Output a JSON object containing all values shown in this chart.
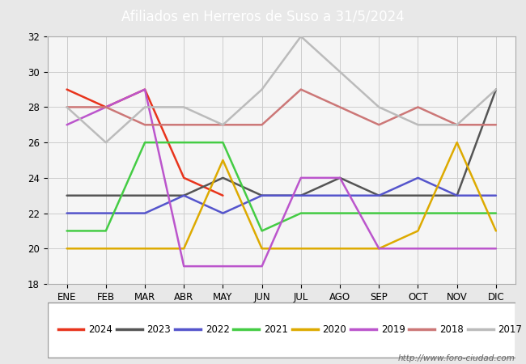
{
  "title": "Afiliados en Herreros de Suso a 31/5/2024",
  "title_bg": "#4d90d5",
  "xlabel": "",
  "ylabel": "",
  "ylim": [
    18,
    32
  ],
  "yticks": [
    18,
    20,
    22,
    24,
    26,
    28,
    30,
    32
  ],
  "months": [
    "ENE",
    "FEB",
    "MAR",
    "ABR",
    "MAY",
    "JUN",
    "JUL",
    "AGO",
    "SEP",
    "OCT",
    "NOV",
    "DIC"
  ],
  "series": {
    "2024": {
      "color": "#e8341c",
      "data": [
        29,
        28,
        29,
        24,
        23,
        null,
        null,
        null,
        null,
        null,
        null,
        null
      ]
    },
    "2023": {
      "color": "#555555",
      "data": [
        23,
        23,
        23,
        23,
        24,
        23,
        23,
        24,
        23,
        23,
        23,
        29
      ]
    },
    "2022": {
      "color": "#5555cc",
      "data": [
        22,
        22,
        22,
        23,
        22,
        23,
        23,
        23,
        23,
        24,
        23,
        23
      ]
    },
    "2021": {
      "color": "#44cc44",
      "data": [
        21,
        21,
        26,
        26,
        26,
        21,
        22,
        22,
        22,
        22,
        22,
        22
      ]
    },
    "2020": {
      "color": "#ddaa00",
      "data": [
        20,
        20,
        20,
        20,
        25,
        20,
        20,
        20,
        20,
        21,
        26,
        21
      ]
    },
    "2019": {
      "color": "#bb55cc",
      "data": [
        27,
        28,
        29,
        19,
        19,
        19,
        24,
        24,
        20,
        20,
        20,
        20
      ]
    },
    "2018": {
      "color": "#cc7777",
      "data": [
        28,
        28,
        27,
        27,
        27,
        27,
        29,
        28,
        27,
        28,
        27,
        27
      ]
    },
    "2017": {
      "color": "#bbbbbb",
      "data": [
        28,
        26,
        28,
        28,
        27,
        29,
        32,
        30,
        28,
        27,
        27,
        29
      ]
    }
  },
  "legend_order": [
    "2024",
    "2023",
    "2022",
    "2021",
    "2020",
    "2019",
    "2018",
    "2017"
  ],
  "watermark": "http://www.foro-ciudad.com",
  "bg_color": "#e8e8e8",
  "plot_bg_color": "#f5f5f5",
  "grid_color": "#cccccc"
}
